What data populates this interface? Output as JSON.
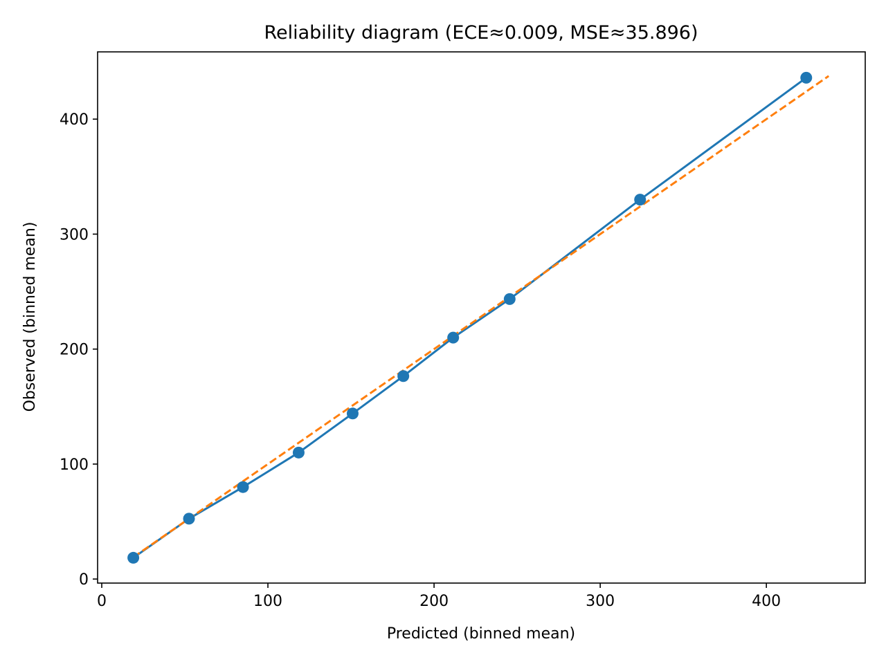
{
  "chart_data": {
    "type": "line",
    "title": "Reliability diagram (ECE≈0.009, MSE≈35.896)",
    "xlabel": "Predicted (binned mean)",
    "ylabel": "Observed (binned mean)",
    "xlim": [
      -2.5,
      459.5
    ],
    "ylim": [
      -3.5,
      458.5
    ],
    "xticks": [
      0,
      100,
      200,
      300,
      400
    ],
    "yticks": [
      0,
      100,
      200,
      300,
      400
    ],
    "xtick_labels": [
      "0",
      "100",
      "200",
      "300",
      "400"
    ],
    "ytick_labels": [
      "0",
      "100",
      "200",
      "300",
      "400"
    ],
    "grid": false,
    "legend": "none",
    "series": [
      {
        "style": "line-with-markers",
        "color": "#1f77b4",
        "x": [
          19,
          52.5,
          85,
          118.5,
          151,
          181.5,
          211.5,
          245.5,
          324,
          424
        ],
        "y": [
          18.5,
          52.5,
          80,
          110,
          144,
          176.5,
          210,
          243.5,
          330,
          436
        ]
      },
      {
        "style": "dashed",
        "color": "#ff7f0e",
        "x": [
          19,
          437.5
        ],
        "y": [
          19,
          437.5
        ]
      }
    ]
  }
}
